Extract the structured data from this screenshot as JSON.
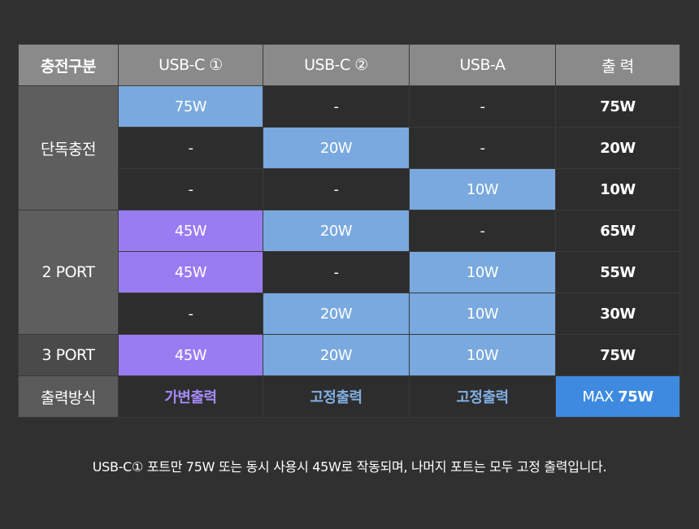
{
  "headers": [
    "충전구분",
    "USB-C ①",
    "USB-C ②",
    "USB-A",
    "출 력"
  ],
  "groups": {
    "single": "단독충전",
    "two": "2 PORT",
    "three": "3 PORT",
    "mode": "출력방식"
  },
  "rows": [
    [
      "75W",
      "-",
      "-",
      "75W"
    ],
    [
      "-",
      "20W",
      "-",
      "20W"
    ],
    [
      "-",
      "-",
      "10W",
      "10W"
    ],
    [
      "45W",
      "20W",
      "-",
      "65W"
    ],
    [
      "45W",
      "-",
      "10W",
      "55W"
    ],
    [
      "-",
      "20W",
      "10W",
      "30W"
    ],
    [
      "45W",
      "20W",
      "10W",
      "75W"
    ]
  ],
  "modes": [
    "가변출력",
    "고정출력",
    "고정출력"
  ],
  "max": {
    "prefix": "MAX",
    "value": "75W"
  },
  "colors": {
    "fixed": "#79a9de",
    "variable": "#9a7cf2",
    "max": "#3d8ae0"
  },
  "note": "USB-C① 포트만 75W 또는 동시 사용시 45W로 작동되며, 나머지 포트는 모두 고정 출력입니다."
}
